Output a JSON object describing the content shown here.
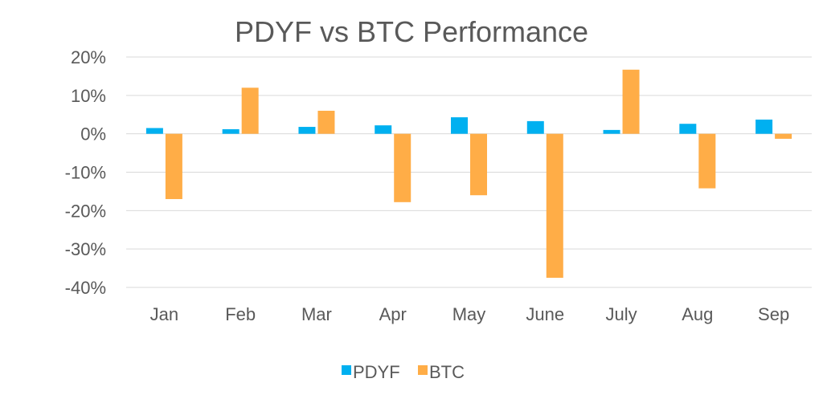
{
  "chart_data": {
    "type": "bar",
    "title": "PDYF vs BTC Performance",
    "xlabel": "",
    "ylabel": "",
    "categories": [
      "Jan",
      "Feb",
      "Mar",
      "Apr",
      "May",
      "June",
      "July",
      "Aug",
      "Sep"
    ],
    "series": [
      {
        "name": "PDYF",
        "color": "#00B0F0",
        "values": [
          1.5,
          1.2,
          1.8,
          2.2,
          4.3,
          3.3,
          1.0,
          2.6,
          3.7
        ]
      },
      {
        "name": "BTC",
        "color": "#FFAD47",
        "values": [
          -17.0,
          12.0,
          6.0,
          -17.8,
          -16.0,
          -37.5,
          16.7,
          -14.2,
          -1.3
        ]
      }
    ],
    "ylim": [
      -40,
      20
    ],
    "yticks": [
      "20%",
      "10%",
      "0%",
      "-10%",
      "-20%",
      "-30%",
      "-40%"
    ],
    "ytick_values": [
      20,
      10,
      0,
      -10,
      -20,
      -30,
      -40
    ],
    "grid": true,
    "legend_position": "bottom"
  }
}
